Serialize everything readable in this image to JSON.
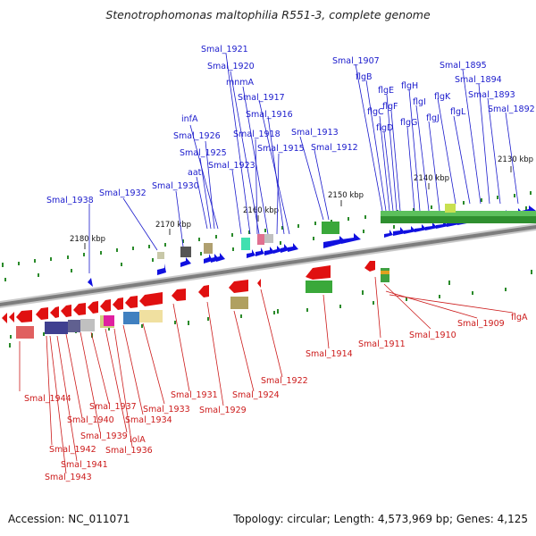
{
  "title": "Stenotrophomonas maltophilia R551-3, complete genome",
  "footer": {
    "accession": "Accession: NC_011071",
    "summary": "Topology: circular; Length: 4,573,969 bp; Genes: 4,125"
  },
  "ticks": [
    "2130 kbp",
    "2140 kbp",
    "2150 kbp",
    "2160 kbp",
    "2170 kbp",
    "2180 kbp"
  ],
  "forward_labels": [
    "Smal_1938",
    "Smal_1932",
    "Smal_1930",
    "aat",
    "Smal_1925",
    "Smal_1926",
    "infA",
    "Smal_1923",
    "Smal_1918",
    "Smal_1915",
    "Smal_1916",
    "Smal_1917",
    "mnmA",
    "Smal_1920",
    "Smal_1921",
    "Smal_1913",
    "Smal_1912",
    "Smal_1907",
    "flgB",
    "flgC",
    "flgD",
    "flgE",
    "flgF",
    "flgG",
    "flgH",
    "flgI",
    "flgJ",
    "flgK",
    "flgL",
    "Smal_1895",
    "Smal_1894",
    "Smal_1893",
    "Smal_1892"
  ],
  "reverse_labels": [
    "Smal_1944",
    "Smal_1942",
    "Smal_1943",
    "Smal_1941",
    "Smal_1940",
    "Smal_1939",
    "Smal_1937",
    "IolA",
    "Smal_1936",
    "Smal_1934",
    "Smal_1933",
    "Smal_1931",
    "Smal_1929",
    "Smal_1924",
    "Smal_1922",
    "Smal_1914",
    "Smal_1911",
    "Smal_1910",
    "Smal_1909",
    "flgA"
  ],
  "colors": {
    "forward_gene": "#1010e0",
    "reverse_gene": "#e01010",
    "forward_label": "#1a1acc",
    "reverse_label": "#cc1a1a",
    "backbone": "#999999",
    "cog_green": "#3aa83a",
    "tick_green": "#2a8a2a"
  }
}
